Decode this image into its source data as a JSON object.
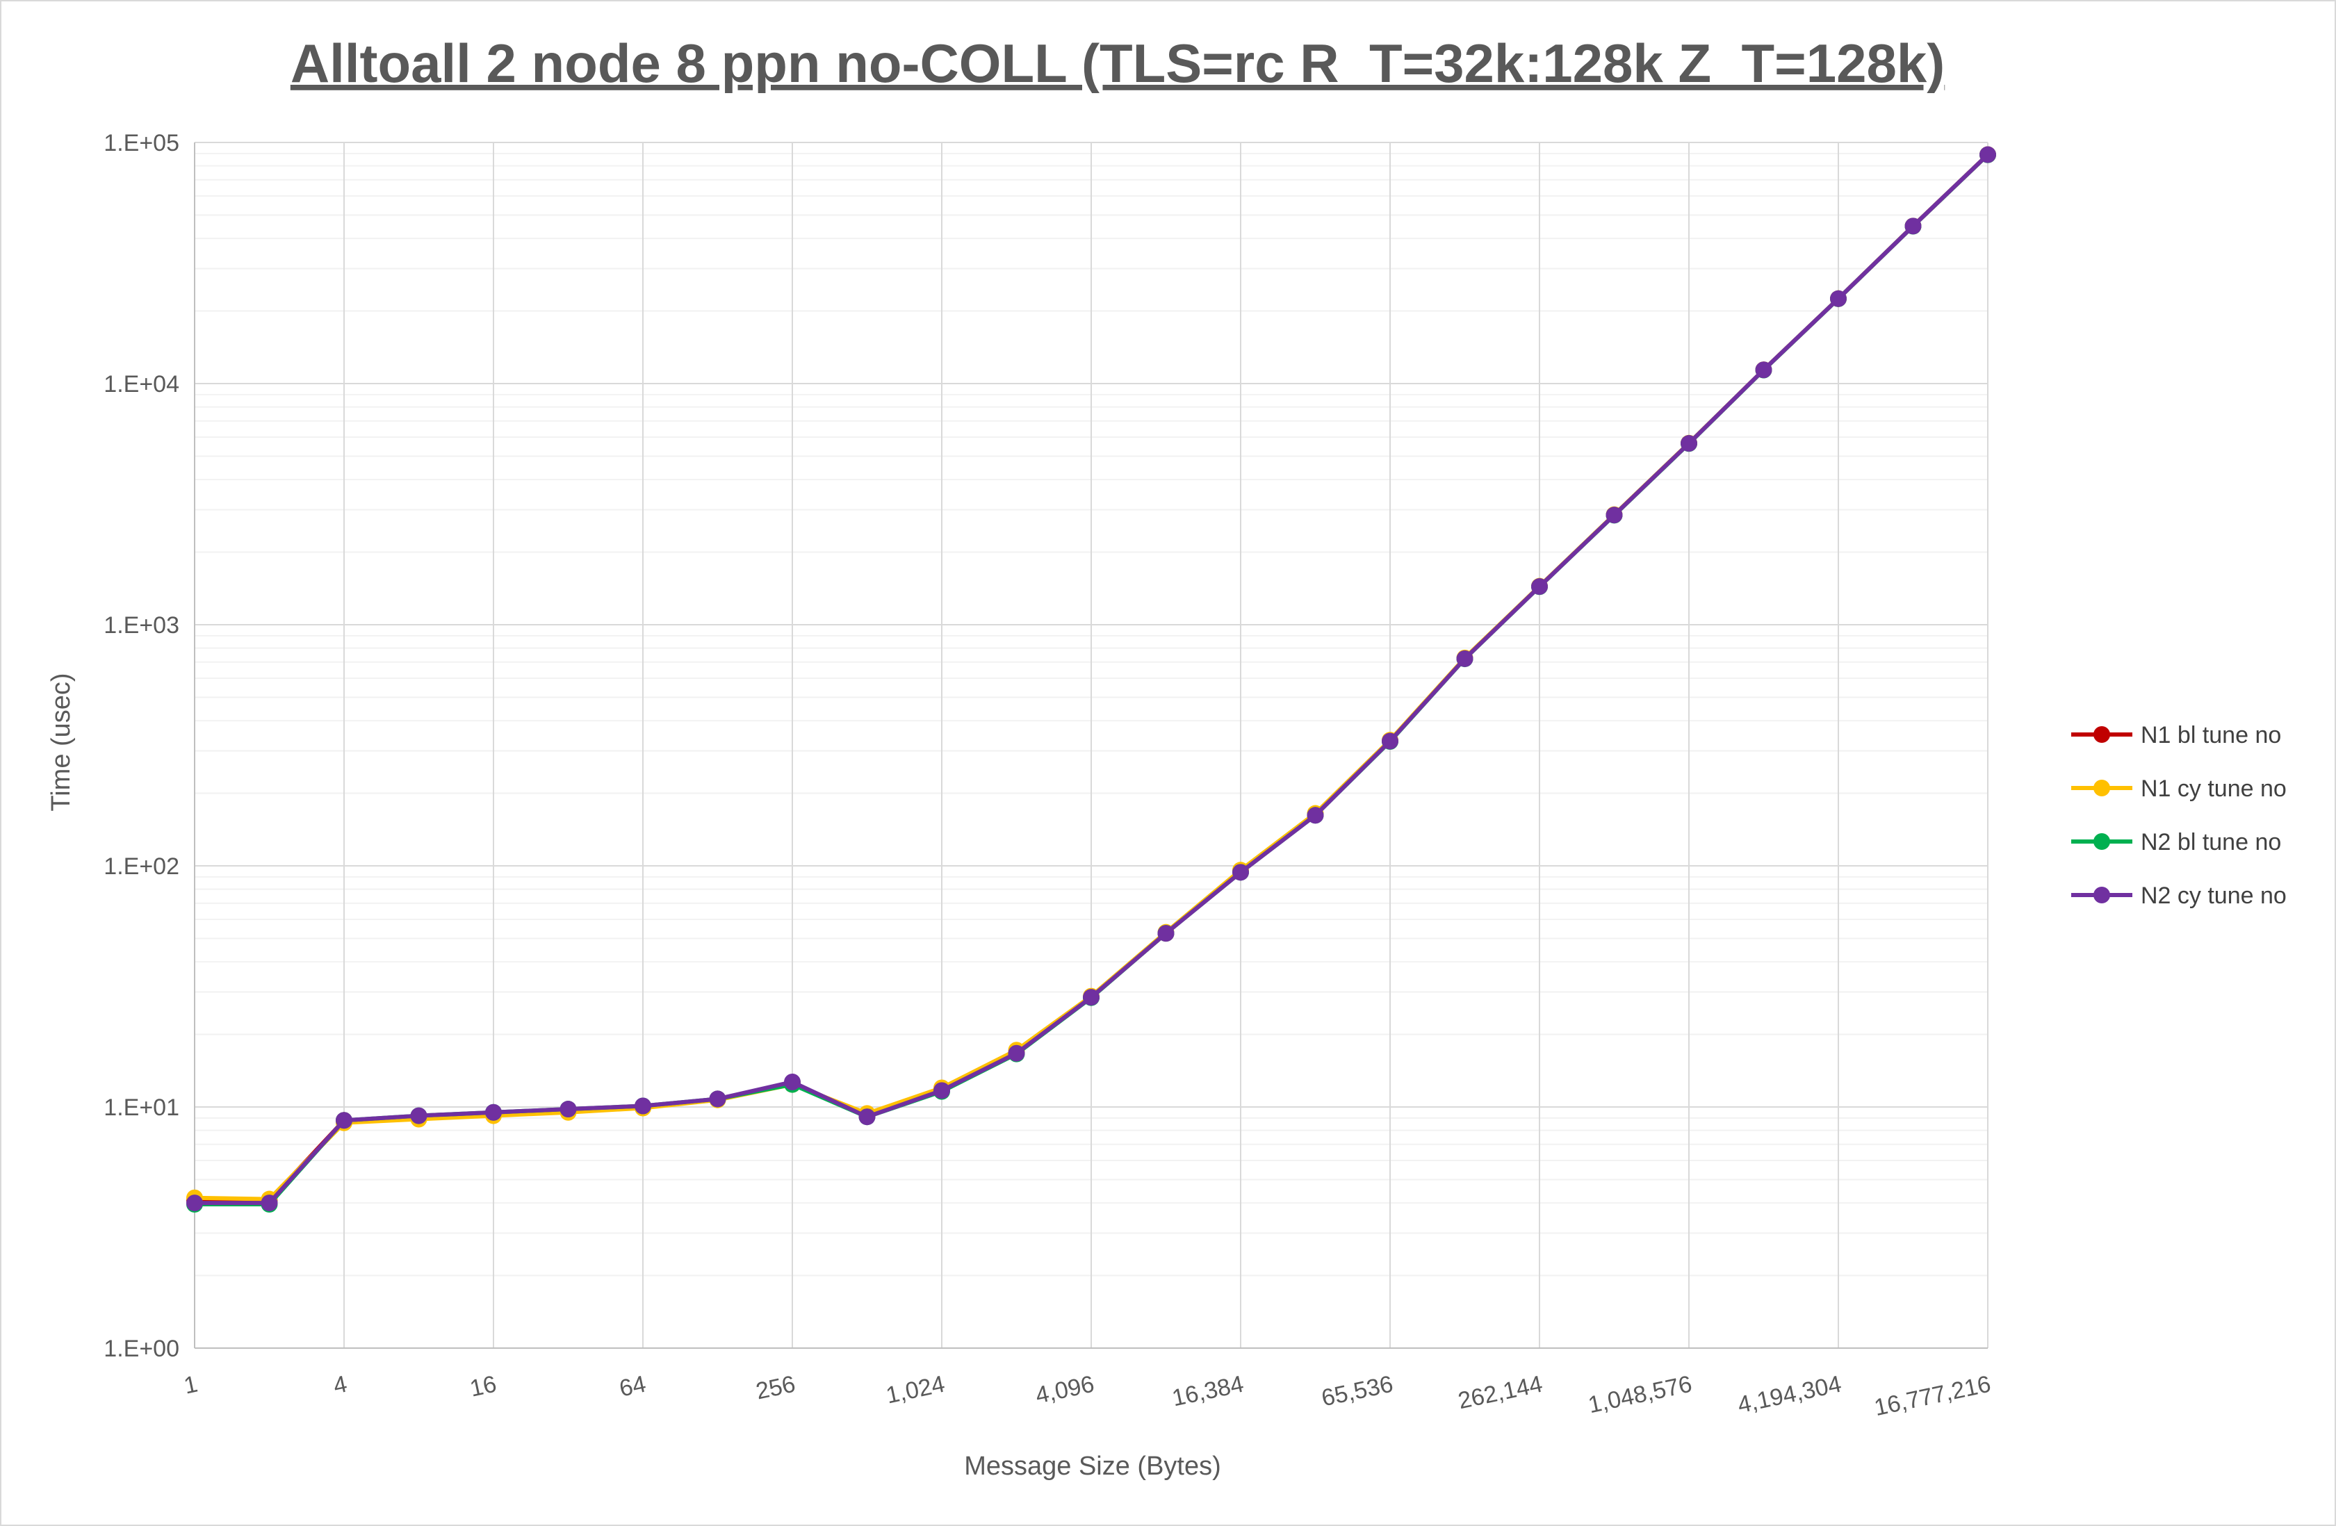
{
  "chart_data": {
    "type": "line",
    "title": "Alltoall 2 node 8 ppn no-COLL (TLS=rc R_T=32k:128k Z_T=128k)",
    "xlabel": "Message Size (Bytes)",
    "ylabel": "Time (usec)",
    "x_scale": "log2",
    "y_scale": "log10",
    "x": [
      1,
      2,
      4,
      8,
      16,
      32,
      64,
      128,
      256,
      512,
      1024,
      2048,
      4096,
      8192,
      16384,
      32768,
      65536,
      131072,
      262144,
      524288,
      1048576,
      2097152,
      4194304,
      8388608,
      16777216
    ],
    "xlim": [
      1,
      16777216
    ],
    "ylim": [
      1,
      100000
    ],
    "x_ticks": [
      "1",
      "4",
      "16",
      "64",
      "256",
      "1,024",
      "4,096",
      "16,384",
      "65,536",
      "262,144",
      "1,048,576",
      "4,194,304",
      "16,777,216"
    ],
    "y_ticks": [
      "1.E+00",
      "1.E+01",
      "1.E+02",
      "1.E+03",
      "1.E+04",
      "1.E+05"
    ],
    "grid": true,
    "legend_position": "right",
    "series": [
      {
        "name": "N1 bl tune no",
        "color": "#c00000",
        "values": [
          4.1,
          4.1,
          8.8,
          9.1,
          9.4,
          9.7,
          10.0,
          10.8,
          12.6,
          9.2,
          11.8,
          16.8,
          28.5,
          52.5,
          95,
          163,
          330,
          725,
          1440,
          2850,
          5650,
          11400,
          22500,
          45000,
          89000
        ]
      },
      {
        "name": "N1 cy tune no",
        "color": "#ffc000",
        "values": [
          4.2,
          4.15,
          8.6,
          8.9,
          9.2,
          9.5,
          9.9,
          10.7,
          12.4,
          9.4,
          12.0,
          17.2,
          28.8,
          53,
          96,
          165,
          332,
          728,
          1445,
          2860,
          5660,
          11400,
          22500,
          45000,
          89000
        ]
      },
      {
        "name": "N2 bl tune no",
        "color": "#00b050",
        "values": [
          3.95,
          3.95,
          8.8,
          9.2,
          9.5,
          9.8,
          10.1,
          10.8,
          12.4,
          9.1,
          11.6,
          16.6,
          28.4,
          52.5,
          94,
          162,
          328,
          722,
          1438,
          2845,
          5640,
          11380,
          22480,
          44950,
          88900
        ]
      },
      {
        "name": "N2 cy tune no",
        "color": "#7030a0",
        "values": [
          4.0,
          4.0,
          8.8,
          9.2,
          9.5,
          9.8,
          10.1,
          10.8,
          12.7,
          9.1,
          11.7,
          16.7,
          28.5,
          52.5,
          94,
          162,
          329,
          723,
          1440,
          2850,
          5650,
          11400,
          22500,
          45000,
          89000
        ]
      }
    ]
  }
}
